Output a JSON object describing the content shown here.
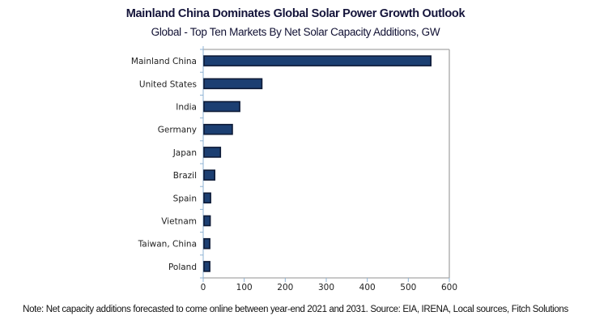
{
  "chart_data": {
    "type": "bar",
    "orientation": "horizontal",
    "title": "Mainland China Dominates Global Solar Power Growth Outlook",
    "subtitle": "Global - Top Ten Markets By Net Solar Capacity Additions, GW",
    "xlabel": "",
    "ylabel": "",
    "categories": [
      "Mainland China",
      "United States",
      "India",
      "Germany",
      "Japan",
      "Brazil",
      "Spain",
      "Vietnam",
      "Taiwan, China",
      "Poland"
    ],
    "values": [
      555,
      143,
      89,
      71,
      42,
      28,
      18,
      17,
      16,
      16
    ],
    "xlim": [
      0,
      600
    ],
    "xticks": [
      0,
      100,
      200,
      300,
      400,
      500,
      600
    ],
    "xtick_labels": [
      "0",
      "100",
      "200",
      "300",
      "400",
      "500",
      "600"
    ],
    "grid": false,
    "legend": "none",
    "bar_color": "#1c3f72",
    "bar_edge_color": "#0d1a36",
    "note": "Note: Net capacity additions forecasted to come online between year-end 2021 and 2031. Source: EIA, IRENA, Local sources, Fitch Solutions"
  }
}
